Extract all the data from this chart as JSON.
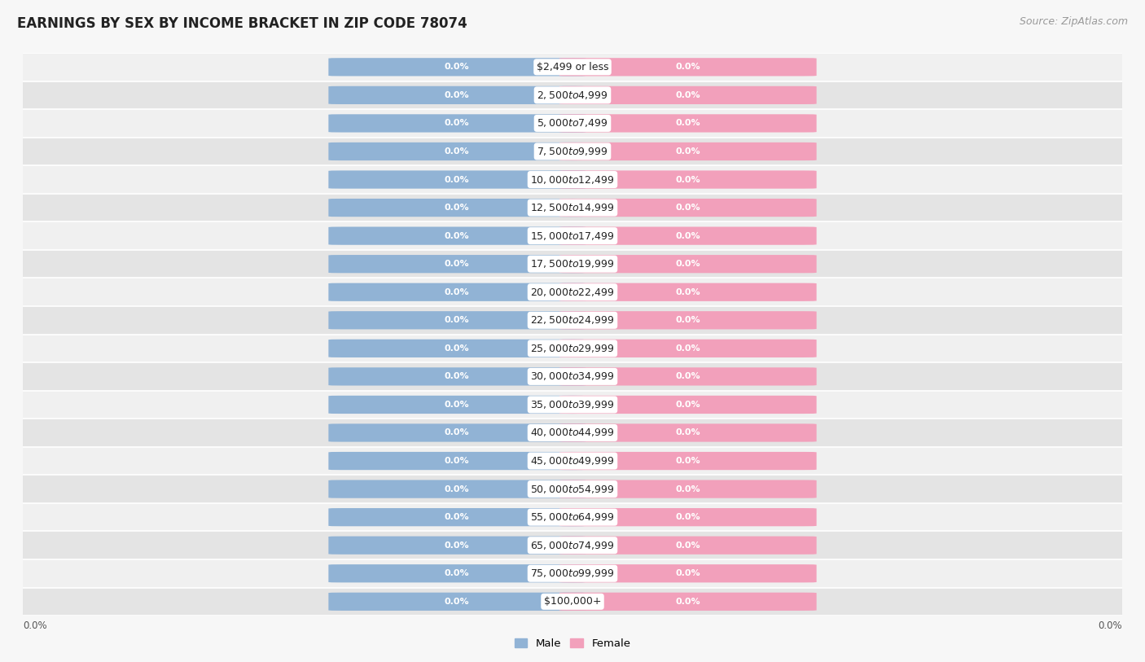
{
  "title": "EARNINGS BY SEX BY INCOME BRACKET IN ZIP CODE 78074",
  "source": "Source: ZipAtlas.com",
  "categories": [
    "$2,499 or less",
    "$2,500 to $4,999",
    "$5,000 to $7,499",
    "$7,500 to $9,999",
    "$10,000 to $12,499",
    "$12,500 to $14,999",
    "$15,000 to $17,499",
    "$17,500 to $19,999",
    "$20,000 to $22,499",
    "$22,500 to $24,999",
    "$25,000 to $29,999",
    "$30,000 to $34,999",
    "$35,000 to $39,999",
    "$40,000 to $44,999",
    "$45,000 to $49,999",
    "$50,000 to $54,999",
    "$55,000 to $64,999",
    "$65,000 to $74,999",
    "$75,000 to $99,999",
    "$100,000+"
  ],
  "male_values": [
    0.0,
    0.0,
    0.0,
    0.0,
    0.0,
    0.0,
    0.0,
    0.0,
    0.0,
    0.0,
    0.0,
    0.0,
    0.0,
    0.0,
    0.0,
    0.0,
    0.0,
    0.0,
    0.0,
    0.0
  ],
  "female_values": [
    0.0,
    0.0,
    0.0,
    0.0,
    0.0,
    0.0,
    0.0,
    0.0,
    0.0,
    0.0,
    0.0,
    0.0,
    0.0,
    0.0,
    0.0,
    0.0,
    0.0,
    0.0,
    0.0,
    0.0
  ],
  "male_color": "#91b3d5",
  "female_color": "#f2a0bb",
  "male_label_color": "#ffffff",
  "female_label_color": "#ffffff",
  "background_color": "#f7f7f7",
  "row_color_light": "#f0f0f0",
  "row_color_dark": "#e4e4e4",
  "title_fontsize": 12,
  "source_fontsize": 9,
  "label_fontsize": 8,
  "category_fontsize": 9,
  "axis_label_fontsize": 8.5,
  "legend_fontsize": 9.5
}
